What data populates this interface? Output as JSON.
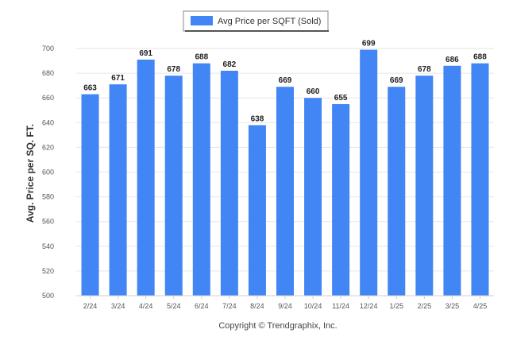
{
  "chart_data": {
    "type": "bar",
    "categories": [
      "2/24",
      "3/24",
      "4/24",
      "5/24",
      "6/24",
      "7/24",
      "8/24",
      "9/24",
      "10/24",
      "11/24",
      "12/24",
      "1/25",
      "2/25",
      "3/25",
      "4/25"
    ],
    "series": [
      {
        "name": "Avg Price per SQFT (Sold)",
        "values": [
          663,
          671,
          691,
          678,
          688,
          682,
          638,
          669,
          660,
          655,
          699,
          669,
          678,
          686,
          688
        ],
        "color": "#4285f4"
      }
    ],
    "ylabel": "Avg. Price per SQ. FT.",
    "xlabel": "",
    "ylim": [
      500,
      700
    ],
    "yticks": [
      500,
      520,
      540,
      560,
      580,
      600,
      620,
      640,
      660,
      680,
      700
    ],
    "grid": true,
    "legend_position": "top-center",
    "data_labels": true
  },
  "footer": "Copyright © Trendgraphix, Inc."
}
